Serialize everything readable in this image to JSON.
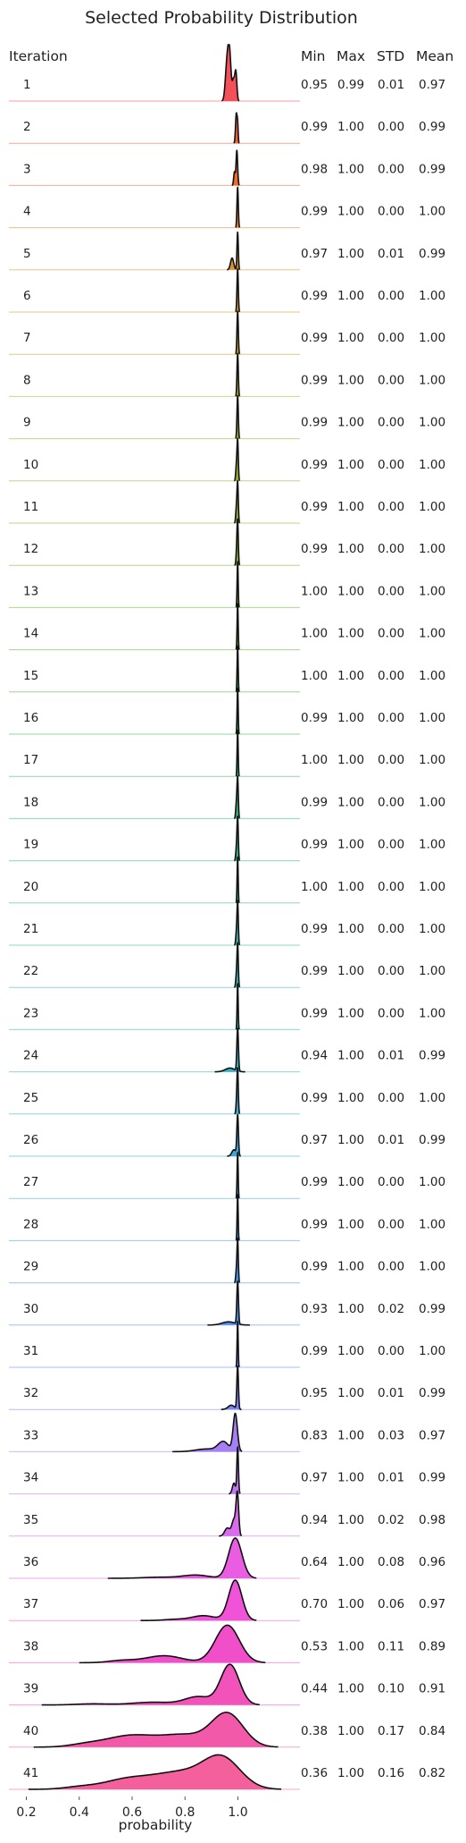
{
  "chart_data": {
    "type": "ridgeline",
    "title": "Selected Probability Distribution",
    "xlabel": "probability",
    "row_header": "Iteration",
    "stat_headers": [
      "Min",
      "Max",
      "STD",
      "Mean"
    ],
    "xlim": [
      0.18,
      1.2
    ],
    "xticks": [
      0.2,
      0.4,
      0.6,
      0.8,
      1.0
    ],
    "xtick_labels": [
      "0.2",
      "0.4",
      "0.6",
      "0.8",
      "1.0"
    ],
    "grid": false,
    "rows": [
      {
        "iteration": "1",
        "min": "0.95",
        "max": "0.99",
        "std": "0.01",
        "mean": "0.97",
        "color": "#f4505a",
        "peaks": [
          [
            0.958,
            0.6,
            0.006
          ],
          [
            0.968,
            0.9,
            0.006
          ],
          [
            0.983,
            0.35,
            0.004
          ],
          [
            0.992,
            0.55,
            0.004
          ]
        ]
      },
      {
        "iteration": "2",
        "min": "0.99",
        "max": "1.00",
        "std": "0.00",
        "mean": "0.99",
        "color": "#f2613c",
        "peaks": [
          [
            0.994,
            0.55,
            0.003
          ],
          [
            0.999,
            0.3,
            0.002
          ]
        ]
      },
      {
        "iteration": "3",
        "min": "0.98",
        "max": "1.00",
        "std": "0.00",
        "mean": "0.99",
        "color": "#ee6b2e",
        "peaks": [
          [
            0.987,
            0.25,
            0.003
          ],
          [
            0.996,
            0.65,
            0.003
          ]
        ]
      },
      {
        "iteration": "4",
        "min": "0.99",
        "max": "1.00",
        "std": "0.00",
        "mean": "1.00",
        "color": "#e8802a",
        "peaks": [
          [
            0.999,
            0.75,
            0.0025
          ]
        ]
      },
      {
        "iteration": "5",
        "min": "0.97",
        "max": "1.00",
        "std": "0.01",
        "mean": "0.99",
        "color": "#d99530",
        "peaks": [
          [
            0.978,
            0.22,
            0.006
          ],
          [
            0.999,
            0.7,
            0.0025
          ]
        ]
      },
      {
        "iteration": "6",
        "min": "0.99",
        "max": "1.00",
        "std": "0.00",
        "mean": "1.00",
        "color": "#c79d2a",
        "peaks": [
          [
            0.999,
            0.8,
            0.0025
          ]
        ]
      },
      {
        "iteration": "7",
        "min": "0.99",
        "max": "1.00",
        "std": "0.00",
        "mean": "1.00",
        "color": "#bba22a",
        "peaks": [
          [
            0.999,
            0.8,
            0.0025
          ]
        ]
      },
      {
        "iteration": "8",
        "min": "0.99",
        "max": "1.00",
        "std": "0.00",
        "mean": "1.00",
        "color": "#b0a62a",
        "peaks": [
          [
            0.999,
            0.8,
            0.0025
          ]
        ]
      },
      {
        "iteration": "9",
        "min": "0.99",
        "max": "1.00",
        "std": "0.00",
        "mean": "1.00",
        "color": "#a6aa2a",
        "peaks": [
          [
            0.999,
            0.8,
            0.0025
          ]
        ]
      },
      {
        "iteration": "10",
        "min": "0.99",
        "max": "1.00",
        "std": "0.00",
        "mean": "1.00",
        "color": "#9aad2c",
        "peaks": [
          [
            0.994,
            0.25,
            0.0025
          ],
          [
            0.999,
            0.75,
            0.0025
          ]
        ]
      },
      {
        "iteration": "11",
        "min": "0.99",
        "max": "1.00",
        "std": "0.00",
        "mean": "1.00",
        "color": "#8db02e",
        "peaks": [
          [
            0.994,
            0.25,
            0.0025
          ],
          [
            0.999,
            0.75,
            0.0025
          ]
        ]
      },
      {
        "iteration": "12",
        "min": "0.99",
        "max": "1.00",
        "std": "0.00",
        "mean": "1.00",
        "color": "#7fb230",
        "peaks": [
          [
            0.995,
            0.2,
            0.0025
          ],
          [
            0.999,
            0.8,
            0.0025
          ]
        ]
      },
      {
        "iteration": "13",
        "min": "1.00",
        "max": "1.00",
        "std": "0.00",
        "mean": "1.00",
        "color": "#6fb433",
        "peaks": [
          [
            0.999,
            0.85,
            0.002
          ]
        ]
      },
      {
        "iteration": "14",
        "min": "1.00",
        "max": "1.00",
        "std": "0.00",
        "mean": "1.00",
        "color": "#5db536",
        "peaks": [
          [
            0.999,
            0.85,
            0.002
          ]
        ]
      },
      {
        "iteration": "15",
        "min": "1.00",
        "max": "1.00",
        "std": "0.00",
        "mean": "1.00",
        "color": "#48b63e",
        "peaks": [
          [
            0.999,
            0.85,
            0.002
          ]
        ]
      },
      {
        "iteration": "16",
        "min": "0.99",
        "max": "1.00",
        "std": "0.00",
        "mean": "1.00",
        "color": "#36b753",
        "peaks": [
          [
            0.999,
            0.85,
            0.002
          ]
        ]
      },
      {
        "iteration": "17",
        "min": "1.00",
        "max": "1.00",
        "std": "0.00",
        "mean": "1.00",
        "color": "#33b66a",
        "peaks": [
          [
            0.999,
            0.85,
            0.002
          ]
        ]
      },
      {
        "iteration": "18",
        "min": "0.99",
        "max": "1.00",
        "std": "0.00",
        "mean": "1.00",
        "color": "#33b57c",
        "peaks": [
          [
            0.994,
            0.25,
            0.0025
          ],
          [
            0.999,
            0.75,
            0.0025
          ]
        ]
      },
      {
        "iteration": "19",
        "min": "0.99",
        "max": "1.00",
        "std": "0.00",
        "mean": "1.00",
        "color": "#33b48c",
        "peaks": [
          [
            0.994,
            0.2,
            0.0025
          ],
          [
            0.999,
            0.8,
            0.0025
          ]
        ]
      },
      {
        "iteration": "20",
        "min": "1.00",
        "max": "1.00",
        "std": "0.00",
        "mean": "1.00",
        "color": "#34b399",
        "peaks": [
          [
            0.999,
            0.85,
            0.002
          ]
        ]
      },
      {
        "iteration": "21",
        "min": "0.99",
        "max": "1.00",
        "std": "0.00",
        "mean": "1.00",
        "color": "#35b2a5",
        "peaks": [
          [
            0.994,
            0.2,
            0.0025
          ],
          [
            0.999,
            0.8,
            0.0025
          ]
        ]
      },
      {
        "iteration": "22",
        "min": "0.99",
        "max": "1.00",
        "std": "0.00",
        "mean": "1.00",
        "color": "#36b1af",
        "peaks": [
          [
            0.994,
            0.2,
            0.0025
          ],
          [
            0.999,
            0.8,
            0.0025
          ]
        ]
      },
      {
        "iteration": "23",
        "min": "0.99",
        "max": "1.00",
        "std": "0.00",
        "mean": "1.00",
        "color": "#37b0b9",
        "peaks": [
          [
            0.999,
            0.85,
            0.002
          ]
        ]
      },
      {
        "iteration": "24",
        "min": "0.94",
        "max": "1.00",
        "std": "0.01",
        "mean": "0.99",
        "color": "#38aec3",
        "peaks": [
          [
            0.97,
            0.07,
            0.018
          ],
          [
            0.999,
            0.8,
            0.003
          ]
        ]
      },
      {
        "iteration": "25",
        "min": "0.99",
        "max": "1.00",
        "std": "0.00",
        "mean": "1.00",
        "color": "#39acce",
        "peaks": [
          [
            0.995,
            0.2,
            0.0025
          ],
          [
            0.999,
            0.8,
            0.0025
          ]
        ]
      },
      {
        "iteration": "26",
        "min": "0.97",
        "max": "1.00",
        "std": "0.01",
        "mean": "0.99",
        "color": "#3aa9da",
        "peaks": [
          [
            0.985,
            0.12,
            0.008
          ],
          [
            0.999,
            0.75,
            0.003
          ]
        ]
      },
      {
        "iteration": "27",
        "min": "0.99",
        "max": "1.00",
        "std": "0.00",
        "mean": "1.00",
        "color": "#3ca5e3",
        "peaks": [
          [
            0.999,
            0.85,
            0.002
          ]
        ]
      },
      {
        "iteration": "28",
        "min": "0.99",
        "max": "1.00",
        "std": "0.00",
        "mean": "1.00",
        "color": "#3f9fe8",
        "peaks": [
          [
            0.999,
            0.85,
            0.002
          ]
        ]
      },
      {
        "iteration": "29",
        "min": "0.99",
        "max": "1.00",
        "std": "0.00",
        "mean": "1.00",
        "color": "#4598ec",
        "peaks": [
          [
            0.994,
            0.2,
            0.0025
          ],
          [
            0.999,
            0.8,
            0.0025
          ]
        ]
      },
      {
        "iteration": "30",
        "min": "0.93",
        "max": "1.00",
        "std": "0.02",
        "mean": "0.99",
        "color": "#4e90f0",
        "peaks": [
          [
            0.965,
            0.06,
            0.025
          ],
          [
            0.999,
            0.8,
            0.003
          ]
        ]
      },
      {
        "iteration": "31",
        "min": "0.99",
        "max": "1.00",
        "std": "0.00",
        "mean": "1.00",
        "color": "#6688f2",
        "peaks": [
          [
            0.999,
            0.85,
            0.002
          ]
        ]
      },
      {
        "iteration": "32",
        "min": "0.95",
        "max": "1.00",
        "std": "0.01",
        "mean": "0.99",
        "color": "#7e82f4",
        "peaks": [
          [
            0.975,
            0.08,
            0.012
          ],
          [
            0.999,
            0.8,
            0.003
          ]
        ]
      },
      {
        "iteration": "33",
        "min": "0.83",
        "max": "1.00",
        "std": "0.03",
        "mean": "0.97",
        "color": "#a57ff4",
        "peaks": [
          [
            0.88,
            0.05,
            0.04
          ],
          [
            0.945,
            0.18,
            0.02
          ],
          [
            0.99,
            0.7,
            0.008
          ]
        ]
      },
      {
        "iteration": "34",
        "min": "0.97",
        "max": "1.00",
        "std": "0.01",
        "mean": "0.99",
        "color": "#c078f2",
        "peaks": [
          [
            0.985,
            0.2,
            0.006
          ],
          [
            0.999,
            0.85,
            0.003
          ]
        ]
      },
      {
        "iteration": "35",
        "min": "0.94",
        "max": "1.00",
        "std": "0.02",
        "mean": "0.98",
        "color": "#d86cec",
        "peaks": [
          [
            0.96,
            0.15,
            0.01
          ],
          [
            0.985,
            0.3,
            0.008
          ],
          [
            0.998,
            0.75,
            0.005
          ]
        ]
      },
      {
        "iteration": "36",
        "min": "0.64",
        "max": "1.00",
        "std": "0.08",
        "mean": "0.96",
        "color": "#ea5de3",
        "peaks": [
          [
            0.7,
            0.02,
            0.06
          ],
          [
            0.84,
            0.06,
            0.05
          ],
          [
            0.99,
            0.75,
            0.025
          ]
        ]
      },
      {
        "iteration": "37",
        "min": "0.70",
        "max": "1.00",
        "std": "0.06",
        "mean": "0.97",
        "color": "#f052d8",
        "peaks": [
          [
            0.76,
            0.02,
            0.04
          ],
          [
            0.87,
            0.09,
            0.045
          ],
          [
            0.99,
            0.75,
            0.025
          ]
        ]
      },
      {
        "iteration": "38",
        "min": "0.53",
        "max": "1.00",
        "std": "0.11",
        "mean": "0.89",
        "color": "#f14fca",
        "peaks": [
          [
            0.56,
            0.04,
            0.05
          ],
          [
            0.72,
            0.13,
            0.07
          ],
          [
            0.96,
            0.7,
            0.045
          ]
        ]
      },
      {
        "iteration": "39",
        "min": "0.44",
        "max": "1.00",
        "std": "0.10",
        "mean": "0.91",
        "color": "#f153ba",
        "peaks": [
          [
            0.45,
            0.02,
            0.06
          ],
          [
            0.68,
            0.05,
            0.08
          ],
          [
            0.85,
            0.15,
            0.05
          ],
          [
            0.97,
            0.75,
            0.035
          ]
        ]
      },
      {
        "iteration": "40",
        "min": "0.38",
        "max": "1.00",
        "std": "0.17",
        "mean": "0.84",
        "color": "#f25aa9",
        "peaks": [
          [
            0.42,
            0.04,
            0.06
          ],
          [
            0.6,
            0.22,
            0.1
          ],
          [
            0.8,
            0.2,
            0.08
          ],
          [
            0.96,
            0.62,
            0.06
          ]
        ]
      },
      {
        "iteration": "41",
        "min": "0.36",
        "max": "1.00",
        "std": "0.16",
        "mean": "0.82",
        "color": "#f4609c",
        "peaks": [
          [
            0.4,
            0.04,
            0.06
          ],
          [
            0.58,
            0.18,
            0.09
          ],
          [
            0.78,
            0.3,
            0.1
          ],
          [
            0.94,
            0.55,
            0.07
          ]
        ]
      }
    ]
  }
}
